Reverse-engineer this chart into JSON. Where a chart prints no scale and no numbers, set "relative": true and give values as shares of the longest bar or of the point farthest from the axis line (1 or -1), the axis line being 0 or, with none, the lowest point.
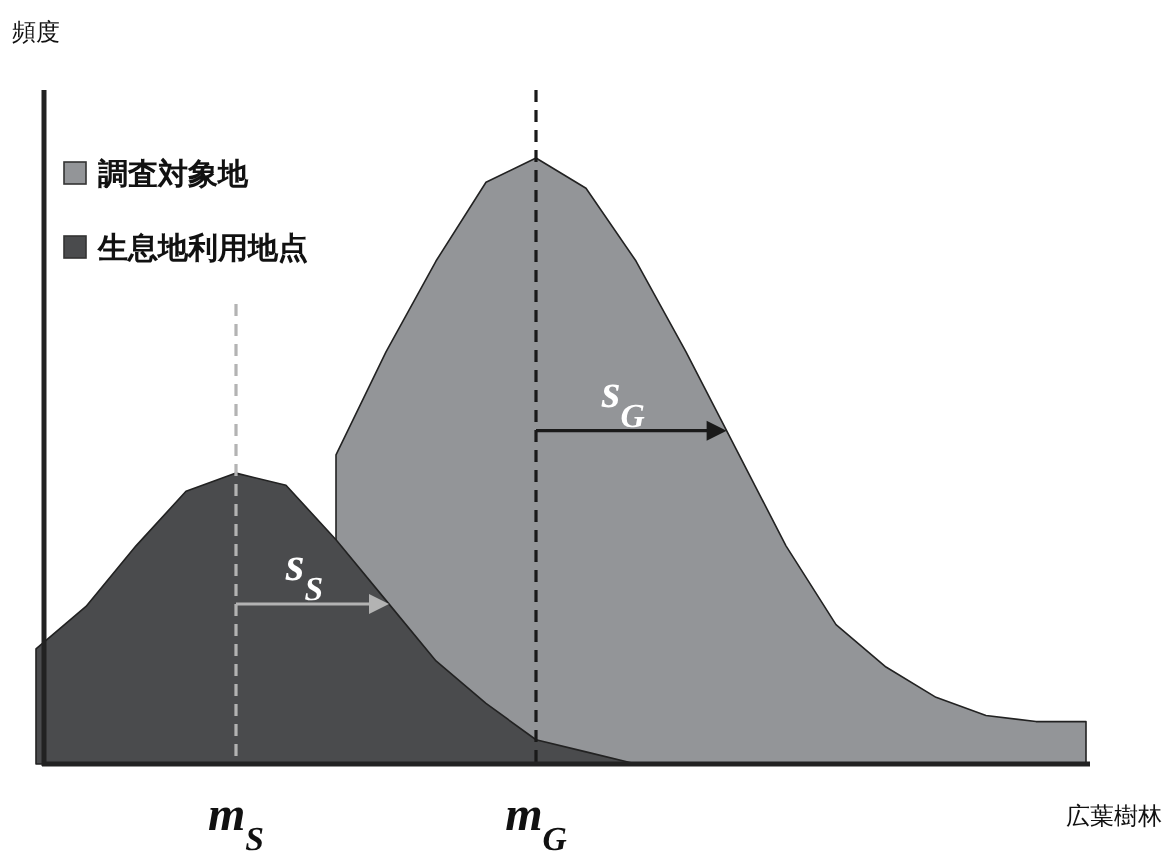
{
  "chart_data": {
    "type": "area",
    "relative": true,
    "ylabel": "頻度",
    "xlabel": "広葉樹林",
    "legend": "top left",
    "categories": [
      null,
      null,
      null,
      null,
      null,
      null,
      null,
      null,
      null,
      null,
      null,
      null,
      null,
      null,
      null,
      null,
      null,
      null,
      null,
      null,
      null,
      null
    ],
    "series": [
      {
        "name": "調査対象地",
        "color": "#939598",
        "values": [
          null,
          null,
          null,
          null,
          null,
          null,
          0.51,
          0.68,
          0.83,
          0.96,
          1.0,
          0.95,
          0.83,
          0.68,
          0.52,
          0.36,
          0.23,
          0.16,
          0.11,
          0.08,
          0.07,
          0.07
        ]
      },
      {
        "name": "生息地利用地点",
        "color": "#4a4b4d",
        "values": [
          0.19,
          0.26,
          0.36,
          0.45,
          0.48,
          0.46,
          0.37,
          0.27,
          0.17,
          0.1,
          0.04,
          0.02,
          0.0,
          0.0,
          0.0,
          0.0,
          0.0,
          0.0,
          0.0,
          0.0,
          0.0,
          0.0
        ]
      }
    ],
    "ref_lines": [
      {
        "axis": "x",
        "label": "m$_{G}$",
        "color": "#1a1a1a",
        "line_style": "dashed"
      },
      {
        "axis": "x",
        "label": "m$_{S}$",
        "color": "#b3b3b3",
        "line_style": "dashed"
      }
    ],
    "annotations": [
      "s$_{G}$",
      "s$_{S}$"
    ]
  }
}
